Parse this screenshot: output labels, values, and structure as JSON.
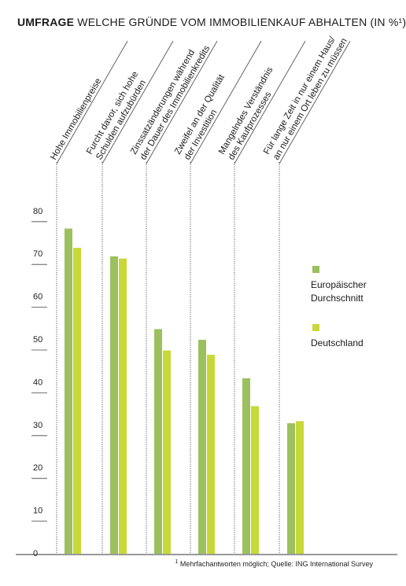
{
  "title": {
    "bold": "UMFRAGE",
    "rest": " WELCHE GRÜNDE VOM IMMOBILIENKAUF ABHALTEN (IN %¹)"
  },
  "footnote": {
    "mark": "1",
    "text": " Mehrfachantworten möglich; Quelle: ING International Survey"
  },
  "colors": {
    "europe": "#9cc05d",
    "germany": "#c8d838",
    "axis": "#333333",
    "divider": "#555555",
    "gridline": "#444444"
  },
  "chart_data": {
    "type": "bar",
    "title": "WELCHE GRÜNDE VOM IMMOBILIENKAUF ABHALTEN (IN %¹)",
    "categories": [
      "Hohe Immobilienpreise",
      "Furcht davor, sich hohe\nSchulden aufzubürden",
      "Zinssatzänderungen während\nder Dauer des Immobilienkredits",
      "Zweifel an der Qualität\nder Investition",
      "Mangelndes Verständnis\ndes Kaufprozesses",
      "Für lange Zeit in nur einem Haus/\nan nur einem Ort leben zu müssen"
    ],
    "series": [
      {
        "name": "Europäischer\nDurchschnitt",
        "values": [
          76,
          69.5,
          52.5,
          50,
          41,
          30.5
        ]
      },
      {
        "name": "Deutschland",
        "values": [
          71.5,
          69,
          47.5,
          46.5,
          34.5,
          31
        ]
      }
    ],
    "yticks": [
      0,
      10,
      20,
      30,
      40,
      50,
      60,
      70,
      80
    ],
    "ylim": [
      0,
      80
    ],
    "legend_position": "right",
    "grid": false
  }
}
